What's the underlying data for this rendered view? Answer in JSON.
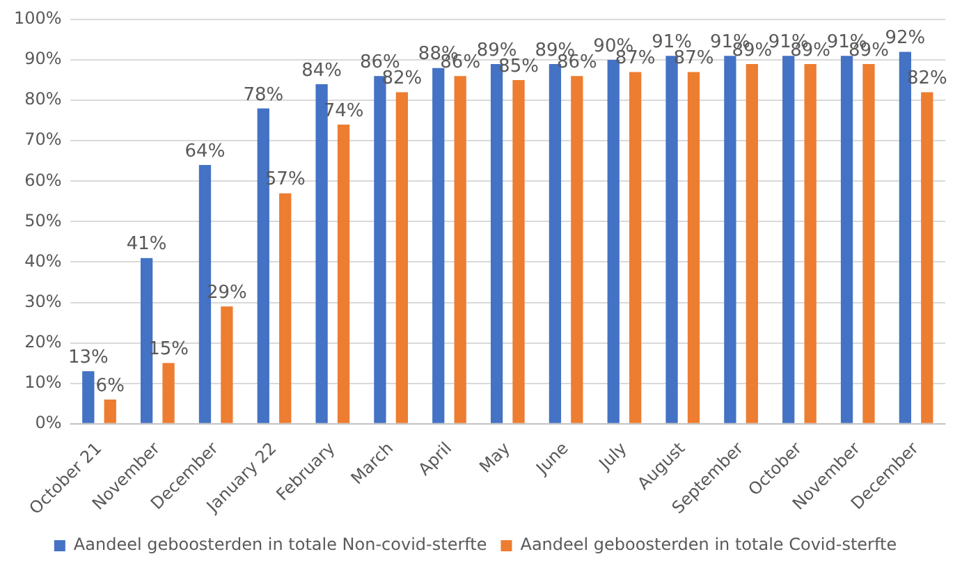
{
  "chart_data": {
    "type": "bar",
    "categories": [
      "October 21",
      "November",
      "December",
      "January 22",
      "February",
      "March",
      "April",
      "May",
      "June",
      "July",
      "August",
      "September",
      "October",
      "November",
      "December"
    ],
    "series": [
      {
        "name": "Aandeel geboosterden in totale Non-covid-sterfte",
        "color": "#4472c4",
        "values": [
          13,
          41,
          64,
          78,
          84,
          86,
          88,
          89,
          89,
          90,
          91,
          91,
          91,
          91,
          92
        ],
        "value_labels": [
          "13%",
          "41%",
          "64%",
          "78%",
          "84%",
          "86%",
          "88%",
          "89%",
          "89%",
          "90%",
          "91%",
          "91%",
          "91%",
          "91%",
          "92%"
        ]
      },
      {
        "name": "Aandeel geboosterden in totale Covid-sterfte",
        "color": "#ed7d31",
        "values": [
          6,
          15,
          29,
          57,
          74,
          82,
          86,
          85,
          86,
          87,
          87,
          89,
          89,
          89,
          82
        ],
        "value_labels": [
          "6%",
          "15%",
          "29%",
          "57%",
          "74%",
          "82%",
          "86%",
          "85%",
          "86%",
          "87%",
          "87%",
          "89%",
          "89%",
          "89%",
          "82%"
        ]
      }
    ],
    "ylim": [
      0,
      100
    ],
    "yticks": [
      {
        "value": 0,
        "label": "0%"
      },
      {
        "value": 10,
        "label": "10%"
      },
      {
        "value": 20,
        "label": "20%"
      },
      {
        "value": 30,
        "label": "30%"
      },
      {
        "value": 40,
        "label": "40%"
      },
      {
        "value": 50,
        "label": "50%"
      },
      {
        "value": 60,
        "label": "60%"
      },
      {
        "value": 70,
        "label": "70%"
      },
      {
        "value": 80,
        "label": "80%"
      },
      {
        "value": 90,
        "label": "90%"
      },
      {
        "value": 100,
        "label": "100%"
      }
    ],
    "grid": "y",
    "legend": "bottom"
  }
}
